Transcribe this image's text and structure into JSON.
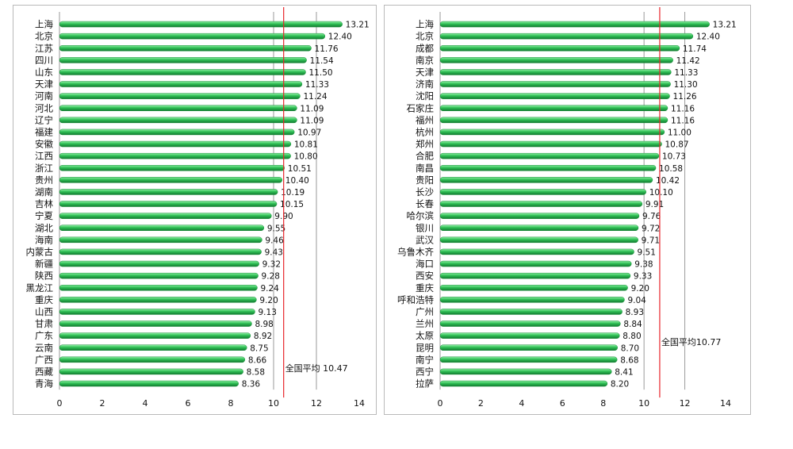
{
  "chart_data": [
    {
      "type": "bar",
      "orientation": "horizontal",
      "categories": [
        "上海",
        "北京",
        "江苏",
        "四川",
        "山东",
        "天津",
        "河南",
        "河北",
        "辽宁",
        "福建",
        "安徽",
        "江西",
        "浙江",
        "贵州",
        "湖南",
        "吉林",
        "宁夏",
        "湖北",
        "海南",
        "内蒙古",
        "新疆",
        "陕西",
        "黑龙江",
        "重庆",
        "山西",
        "甘肃",
        "广东",
        "云南",
        "广西",
        "西藏",
        "青海"
      ],
      "values": [
        13.21,
        12.4,
        11.76,
        11.54,
        11.5,
        11.33,
        11.24,
        11.09,
        11.09,
        10.97,
        10.81,
        10.8,
        10.51,
        10.4,
        10.19,
        10.15,
        9.9,
        9.55,
        9.46,
        9.43,
        9.32,
        9.28,
        9.24,
        9.2,
        9.13,
        8.98,
        8.92,
        8.75,
        8.66,
        8.58,
        8.36
      ],
      "value_labels": [
        "13.21",
        "12.40",
        "11.76",
        "11.54",
        "11.50",
        "11.33",
        "11.24",
        "11.09",
        "11.09",
        "10.97",
        "10.81",
        "10.80",
        "10.51",
        "10.40",
        "10.19",
        "10.15",
        "9.90",
        "9.55",
        "9.46",
        "9.43",
        "9.32",
        "9.28",
        "9.24",
        "9.20",
        "9.13",
        "8.98",
        "8.92",
        "8.75",
        "8.66",
        "8.58",
        "8.36"
      ],
      "xlim": [
        0,
        14
      ],
      "xticks": [
        0,
        2,
        4,
        6,
        8,
        10,
        12,
        14
      ],
      "xtick_labels": [
        "0",
        "2",
        "4",
        "6",
        "8",
        "10",
        "12",
        "14"
      ],
      "gridlines": [
        10,
        12
      ],
      "reference_line": {
        "value": 10.47,
        "label": "全国平均 10.47",
        "color": "#e8242a"
      },
      "bar_color": "#2fbf55",
      "title": "",
      "xlabel": "",
      "ylabel": ""
    },
    {
      "type": "bar",
      "orientation": "horizontal",
      "categories": [
        "上海",
        "北京",
        "成都",
        "南京",
        "天津",
        "济南",
        "沈阳",
        "石家庄",
        "福州",
        "杭州",
        "郑州",
        "合肥",
        "南昌",
        "贵阳",
        "长沙",
        "长春",
        "哈尔滨",
        "银川",
        "武汉",
        "乌鲁木齐",
        "海口",
        "西安",
        "重庆",
        "呼和浩特",
        "广州",
        "兰州",
        "太原",
        "昆明",
        "南宁",
        "西宁",
        "拉萨"
      ],
      "values": [
        13.21,
        12.4,
        11.74,
        11.42,
        11.33,
        11.3,
        11.26,
        11.16,
        11.16,
        11.0,
        10.87,
        10.73,
        10.58,
        10.42,
        10.1,
        9.91,
        9.76,
        9.72,
        9.71,
        9.51,
        9.38,
        9.33,
        9.2,
        9.04,
        8.93,
        8.84,
        8.8,
        8.7,
        8.68,
        8.41,
        8.2
      ],
      "value_labels": [
        "13.21",
        "12.40",
        "11.74",
        "11.42",
        "11.33",
        "11.30",
        "11.26",
        "11.16",
        "11.16",
        "11.00",
        "10.87",
        "10.73",
        "10.58",
        "10.42",
        "10.10",
        "9.91",
        "9.76",
        "9.72",
        "9.71",
        "9.51",
        "9.38",
        "9.33",
        "9.20",
        "9.04",
        "8.93",
        "8.84",
        "8.80",
        "8.70",
        "8.68",
        "8.41",
        "8.20"
      ],
      "xlim": [
        0,
        14
      ],
      "xticks": [
        0,
        2,
        4,
        6,
        8,
        10,
        12,
        14
      ],
      "xtick_labels": [
        "0",
        "2",
        "4",
        "6",
        "8",
        "10",
        "12",
        "14"
      ],
      "gridlines": [
        10,
        12
      ],
      "reference_line": {
        "value": 10.77,
        "label": "全国平均10.77",
        "color": "#e8242a"
      },
      "bar_color": "#2fbf55",
      "title": "",
      "xlabel": "",
      "ylabel": ""
    }
  ]
}
